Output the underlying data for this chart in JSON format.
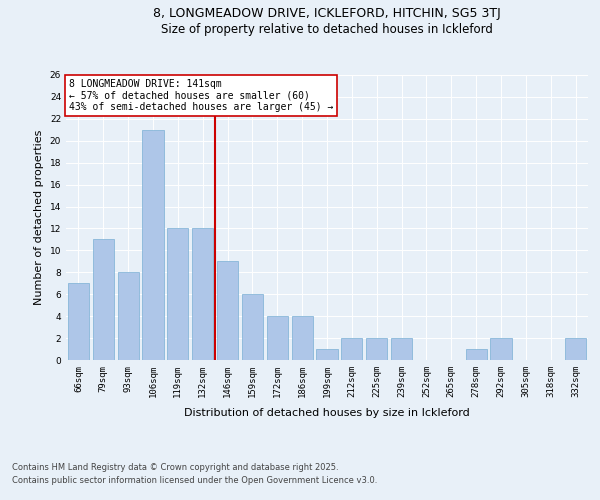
{
  "title": "8, LONGMEADOW DRIVE, ICKLEFORD, HITCHIN, SG5 3TJ",
  "subtitle": "Size of property relative to detached houses in Ickleford",
  "xlabel": "Distribution of detached houses by size in Ickleford",
  "ylabel": "Number of detached properties",
  "bar_labels": [
    "66sqm",
    "79sqm",
    "93sqm",
    "106sqm",
    "119sqm",
    "132sqm",
    "146sqm",
    "159sqm",
    "172sqm",
    "186sqm",
    "199sqm",
    "212sqm",
    "225sqm",
    "239sqm",
    "252sqm",
    "265sqm",
    "278sqm",
    "292sqm",
    "305sqm",
    "318sqm",
    "332sqm"
  ],
  "bar_values": [
    7,
    11,
    8,
    21,
    12,
    12,
    9,
    6,
    4,
    4,
    1,
    2,
    2,
    2,
    0,
    0,
    1,
    2,
    0,
    0,
    2
  ],
  "bar_color": "#aec6e8",
  "bar_edgecolor": "#7aafd4",
  "vline_x_idx": 6,
  "vline_color": "#cc0000",
  "annotation_title": "8 LONGMEADOW DRIVE: 141sqm",
  "annotation_line1": "← 57% of detached houses are smaller (60)",
  "annotation_line2": "43% of semi-detached houses are larger (45) →",
  "annotation_box_color": "#ffffff",
  "annotation_box_edgecolor": "#cc0000",
  "ylim": [
    0,
    26
  ],
  "yticks": [
    0,
    2,
    4,
    6,
    8,
    10,
    12,
    14,
    16,
    18,
    20,
    22,
    24,
    26
  ],
  "footer_line1": "Contains HM Land Registry data © Crown copyright and database right 2025.",
  "footer_line2": "Contains public sector information licensed under the Open Government Licence v3.0.",
  "bg_color": "#e8f0f8",
  "plot_bg_color": "#e8f0f8",
  "title_fontsize": 9,
  "subtitle_fontsize": 8.5,
  "axis_label_fontsize": 8,
  "tick_fontsize": 6.5,
  "annotation_fontsize": 7,
  "ylabel_fontsize": 8
}
